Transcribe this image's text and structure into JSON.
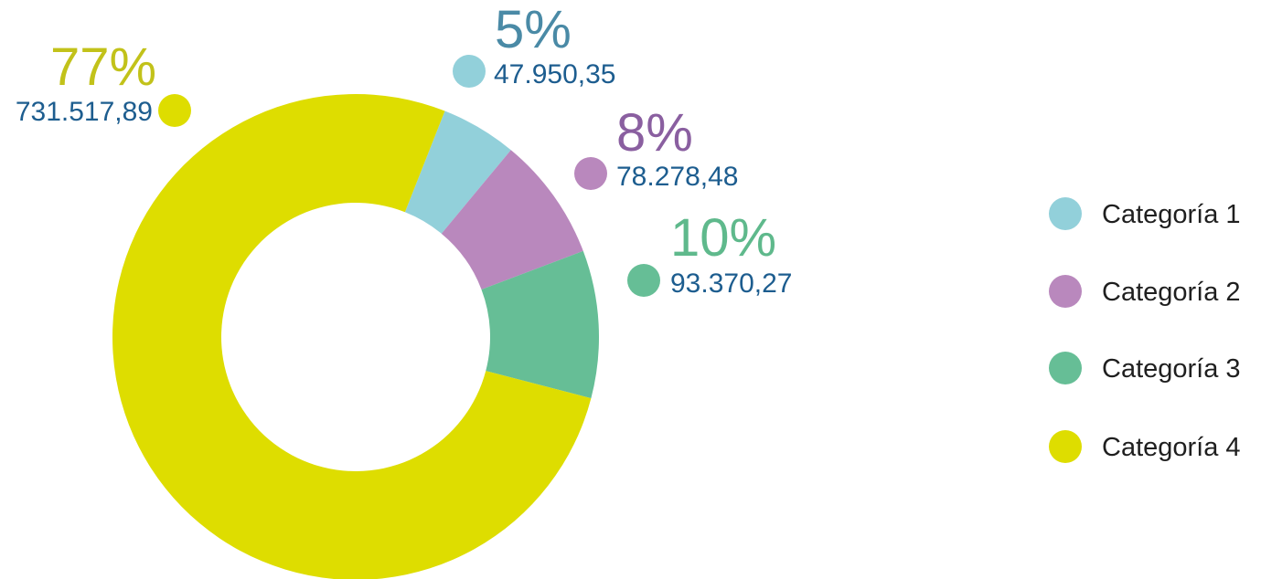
{
  "chart_data": {
    "type": "pie",
    "donut": true,
    "series": [
      {
        "name": "Categoría 1",
        "value": 47950.35,
        "value_label": "47.950,35",
        "percent_label": "5%",
        "color": "#92d0da",
        "percent_color": "#4a8aa6"
      },
      {
        "name": "Categoría 2",
        "value": 78278.48,
        "value_label": "78.278,48",
        "percent_label": "8%",
        "color": "#b988bd",
        "percent_color": "#8a5fa0"
      },
      {
        "name": "Categoría 3",
        "value": 93370.27,
        "value_label": "93.370,27",
        "percent_label": "10%",
        "color": "#66be96",
        "percent_color": "#5fb98c"
      },
      {
        "name": "Categoría 4",
        "value": 731517.89,
        "value_label": "731.517,89",
        "percent_label": "77%",
        "color": "#dedd00",
        "percent_color": "#c2c21a"
      }
    ],
    "value_label_color": "#1d5d8f",
    "legend_placement": "right",
    "start_angle_deg": 21.5
  }
}
